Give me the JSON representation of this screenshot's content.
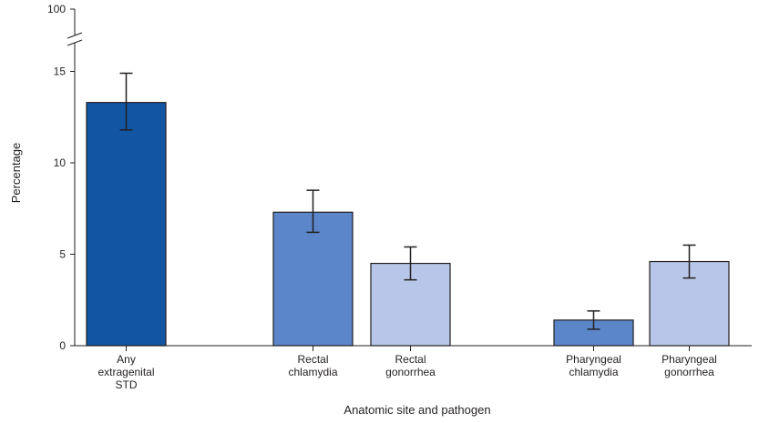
{
  "chart_data": {
    "type": "bar",
    "title": "",
    "xlabel": "Anatomic site and pathogen",
    "ylabel": "Percentage",
    "ylim": [
      0,
      15
    ],
    "axis_break": true,
    "y_ticks": [
      0,
      5,
      10,
      15
    ],
    "y_top_label": "100",
    "grid": false,
    "categories": [
      {
        "lines": [
          "Any",
          "extragenital",
          "STD"
        ],
        "value": 13.3,
        "ci": [
          11.8,
          14.9
        ],
        "color": "#1155a3"
      },
      {
        "lines": [
          "Rectal",
          "chlamydia"
        ],
        "value": 7.3,
        "ci": [
          6.2,
          8.5
        ],
        "color": "#5b86c9"
      },
      {
        "lines": [
          "Rectal",
          "gonorrhea"
        ],
        "value": 4.5,
        "ci": [
          3.6,
          5.4
        ],
        "color": "#b8c7e9"
      },
      {
        "lines": [
          "Pharyngeal",
          "chlamydia"
        ],
        "value": 1.4,
        "ci": [
          0.9,
          1.9
        ],
        "color": "#5b86c9"
      },
      {
        "lines": [
          "Pharyngeal",
          "gonorrhea"
        ],
        "value": 4.6,
        "ci": [
          3.7,
          5.5
        ],
        "color": "#b8c7e9"
      }
    ]
  }
}
